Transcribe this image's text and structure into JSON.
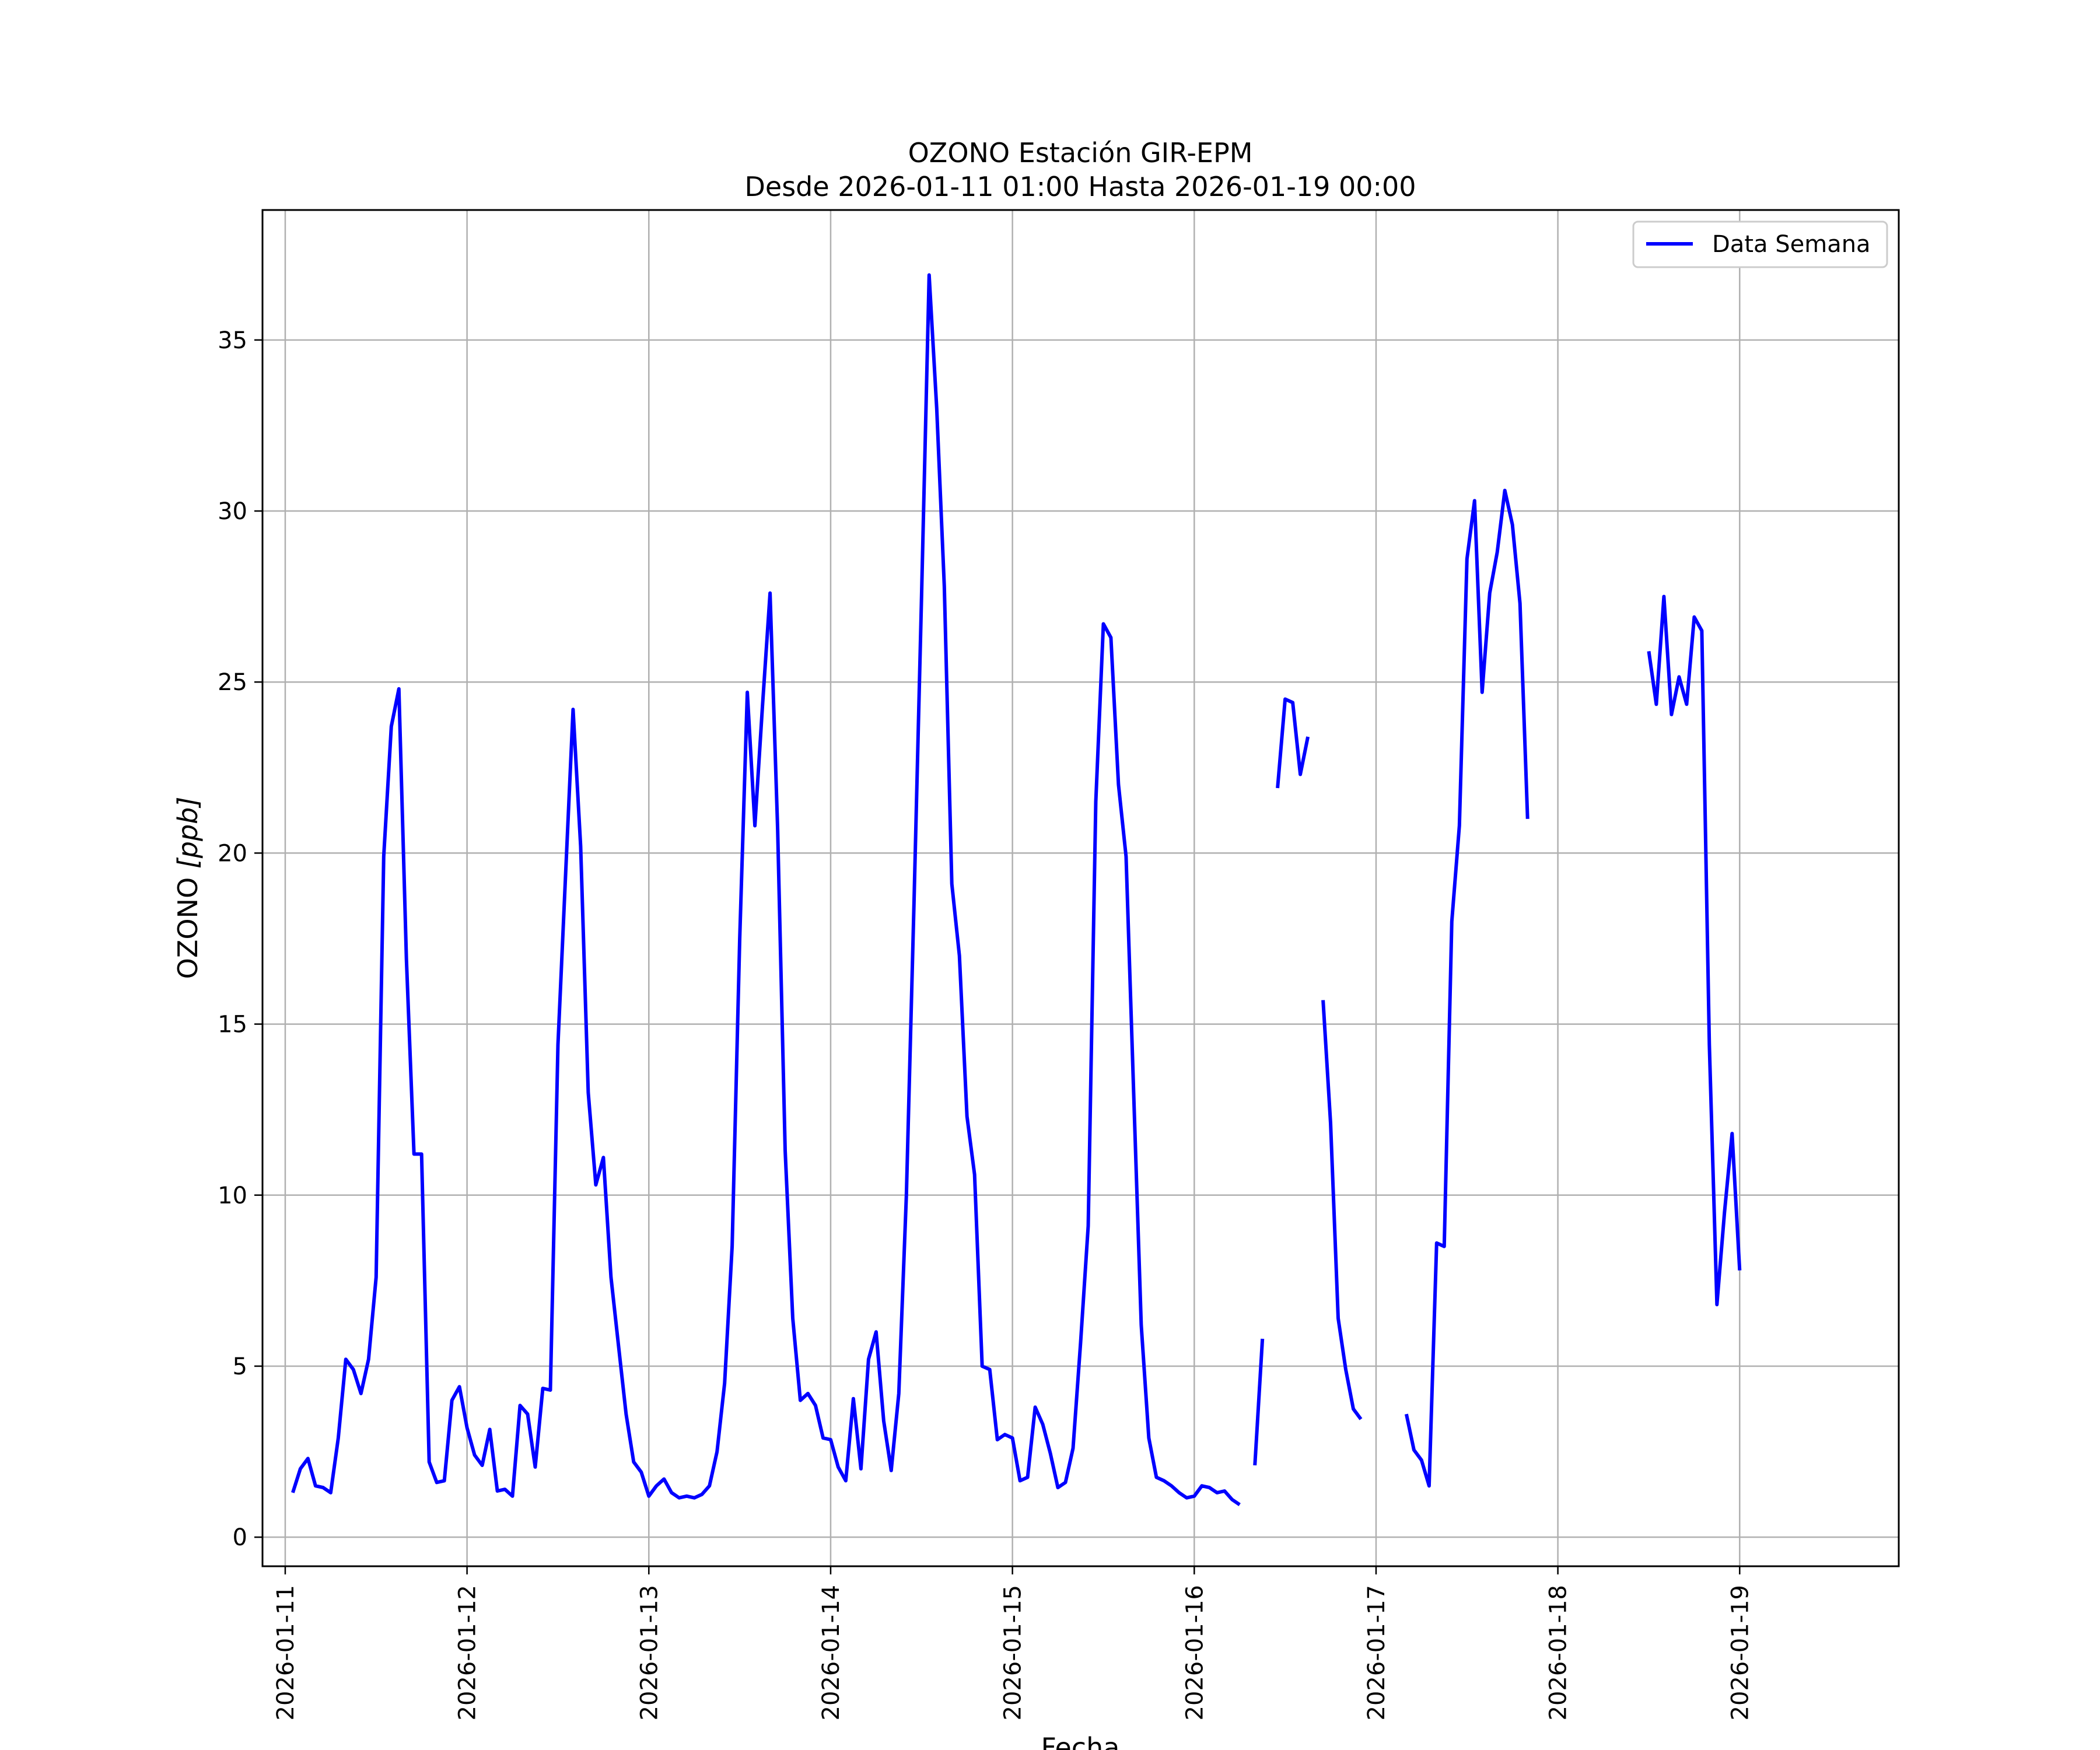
{
  "chart_data": {
    "type": "line",
    "title": "OZONO Estación GIR-EPM",
    "subtitle": "Desde 2026-01-11 01:00 Hasta 2026-01-19 00:00",
    "xlabel": "Fecha",
    "ylabel_main": "OZONO ",
    "ylabel_unit": "[ppb]",
    "x_ticks": [
      "2026-01-11",
      "2026-01-12",
      "2026-01-13",
      "2026-01-14",
      "2026-01-15",
      "2026-01-16",
      "2026-01-17",
      "2026-01-18",
      "2026-01-19"
    ],
    "y_ticks": [
      0,
      5,
      10,
      15,
      20,
      25,
      30,
      35
    ],
    "xlim": [
      "2026-01-10 21:00",
      "2026-01-19 21:00"
    ],
    "ylim": [
      -0.85,
      38.8
    ],
    "grid": true,
    "legend_position": "upper right",
    "color": "#0000ff",
    "series": [
      {
        "name": "Data Semana",
        "segments": [
          {
            "start": "2026-01-11 01:00",
            "values": [
              1.3,
              2.0,
              2.3,
              1.5,
              1.45,
              1.3,
              2.9,
              5.2,
              4.9,
              4.2,
              5.2,
              7.6,
              19.9,
              23.7,
              24.8,
              16.9,
              11.2,
              11.2,
              2.2,
              1.6,
              1.65,
              4.0,
              4.4,
              3.2,
              2.4,
              2.1,
              3.15,
              1.35,
              1.4,
              1.2,
              3.85,
              3.6,
              2.05,
              4.35,
              4.3,
              14.4,
              19.3,
              24.2,
              20.2,
              13.0,
              10.3,
              11.1,
              7.6,
              5.6,
              3.6,
              2.2,
              1.9,
              1.2,
              1.5,
              1.7,
              1.3,
              1.15,
              1.2,
              1.15,
              1.25,
              1.5,
              2.5,
              4.5,
              8.5,
              17.5,
              24.7,
              20.8,
              24.3,
              27.6,
              20.7,
              11.3,
              6.4,
              4.0,
              4.2,
              3.85,
              2.9,
              2.85,
              2.05,
              1.65,
              4.05,
              2.0,
              5.2,
              6.0,
              3.4,
              1.95,
              4.2,
              10.0,
              18.5,
              27.5,
              36.9,
              33.0,
              27.8,
              19.1,
              17.0,
              12.3,
              10.6,
              5.0,
              4.9,
              2.85,
              3.0,
              2.9,
              1.65,
              1.75,
              3.8,
              3.3,
              2.45,
              1.45,
              1.6,
              2.6,
              5.7,
              9.1,
              21.5,
              26.7,
              26.3,
              22.0,
              19.9,
              13.0,
              6.2,
              2.9,
              1.75,
              1.65,
              1.5,
              1.3,
              1.15,
              1.2,
              1.5,
              1.45,
              1.3,
              1.35,
              1.1,
              0.95
            ]
          },
          {
            "start": "2026-01-16 08:00",
            "values": [
              2.1,
              5.8
            ]
          },
          {
            "start": "2026-01-16 11:00",
            "values": [
              21.9,
              24.5,
              24.4,
              22.3,
              23.4
            ]
          },
          {
            "start": "2026-01-16 17:00",
            "values": [
              15.7,
              12.1,
              6.4,
              4.9,
              3.75,
              3.45
            ]
          },
          {
            "start": "2026-01-17 04:00",
            "values": [
              3.6,
              2.55,
              2.25,
              1.5,
              8.6,
              8.5,
              18.0,
              20.8,
              28.6,
              30.3,
              24.7,
              27.6,
              28.8,
              30.6,
              29.6,
              27.3,
              21.0
            ]
          },
          {
            "start": "2026-01-18 12:00",
            "values": [
              25.9,
              24.35,
              27.5,
              24.05,
              25.15,
              24.35,
              26.9,
              26.5,
              14.4,
              6.8,
              9.5,
              11.8,
              7.8
            ]
          }
        ]
      }
    ]
  }
}
